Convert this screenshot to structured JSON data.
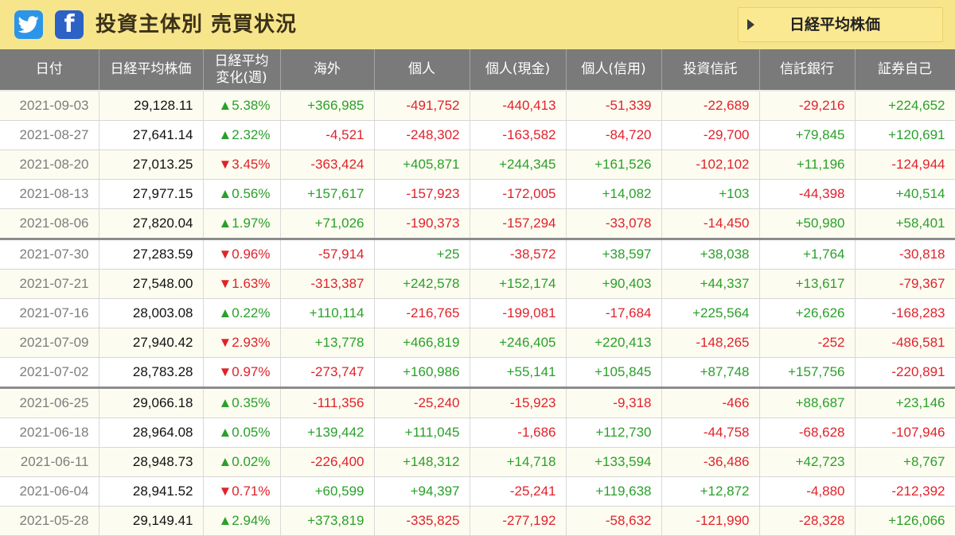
{
  "header": {
    "title": "投資主体別 売買状況",
    "nikkei_button_label": "日経平均株価"
  },
  "columns": [
    "日付",
    "日経平均株価",
    "日経平均\n変化(週)",
    "海外",
    "個人",
    "個人(現金)",
    "個人(信用)",
    "投資信託",
    "信託銀行",
    "証券自己"
  ],
  "colors": {
    "positive": "#2aa02a",
    "negative": "#e1222a",
    "header_bg": "#7a7a7a",
    "topbar_bg": "#f7e58c"
  },
  "rows": [
    {
      "date": "2021-09-03",
      "price": "29,128.11",
      "change": "▲5.38%",
      "values": [
        "+366,985",
        "-491,752",
        "-440,413",
        "-51,339",
        "-22,689",
        "-29,216",
        "+224,652"
      ]
    },
    {
      "date": "2021-08-27",
      "price": "27,641.14",
      "change": "▲2.32%",
      "values": [
        "-4,521",
        "-248,302",
        "-163,582",
        "-84,720",
        "-29,700",
        "+79,845",
        "+120,691"
      ]
    },
    {
      "date": "2021-08-20",
      "price": "27,013.25",
      "change": "▼3.45%",
      "values": [
        "-363,424",
        "+405,871",
        "+244,345",
        "+161,526",
        "-102,102",
        "+11,196",
        "-124,944"
      ]
    },
    {
      "date": "2021-08-13",
      "price": "27,977.15",
      "change": "▲0.56%",
      "values": [
        "+157,617",
        "-157,923",
        "-172,005",
        "+14,082",
        "+103",
        "-44,398",
        "+40,514"
      ]
    },
    {
      "date": "2021-08-06",
      "price": "27,820.04",
      "change": "▲1.97%",
      "values": [
        "+71,026",
        "-190,373",
        "-157,294",
        "-33,078",
        "-14,450",
        "+50,980",
        "+58,401"
      ]
    },
    {
      "date": "2021-07-30",
      "price": "27,283.59",
      "change": "▼0.96%",
      "values": [
        "-57,914",
        "+25",
        "-38,572",
        "+38,597",
        "+38,038",
        "+1,764",
        "-30,818"
      ]
    },
    {
      "date": "2021-07-21",
      "price": "27,548.00",
      "change": "▼1.63%",
      "values": [
        "-313,387",
        "+242,578",
        "+152,174",
        "+90,403",
        "+44,337",
        "+13,617",
        "-79,367"
      ]
    },
    {
      "date": "2021-07-16",
      "price": "28,003.08",
      "change": "▲0.22%",
      "values": [
        "+110,114",
        "-216,765",
        "-199,081",
        "-17,684",
        "+225,564",
        "+26,626",
        "-168,283"
      ]
    },
    {
      "date": "2021-07-09",
      "price": "27,940.42",
      "change": "▼2.93%",
      "values": [
        "+13,778",
        "+466,819",
        "+246,405",
        "+220,413",
        "-148,265",
        "-252",
        "-486,581"
      ]
    },
    {
      "date": "2021-07-02",
      "price": "28,783.28",
      "change": "▼0.97%",
      "values": [
        "-273,747",
        "+160,986",
        "+55,141",
        "+105,845",
        "+87,748",
        "+157,756",
        "-220,891"
      ]
    },
    {
      "date": "2021-06-25",
      "price": "29,066.18",
      "change": "▲0.35%",
      "values": [
        "-111,356",
        "-25,240",
        "-15,923",
        "-9,318",
        "-466",
        "+88,687",
        "+23,146"
      ]
    },
    {
      "date": "2021-06-18",
      "price": "28,964.08",
      "change": "▲0.05%",
      "values": [
        "+139,442",
        "+111,045",
        "-1,686",
        "+112,730",
        "-44,758",
        "-68,628",
        "-107,946"
      ]
    },
    {
      "date": "2021-06-11",
      "price": "28,948.73",
      "change": "▲0.02%",
      "values": [
        "-226,400",
        "+148,312",
        "+14,718",
        "+133,594",
        "-36,486",
        "+42,723",
        "+8,767"
      ]
    },
    {
      "date": "2021-06-04",
      "price": "28,941.52",
      "change": "▼0.71%",
      "values": [
        "+60,599",
        "+94,397",
        "-25,241",
        "+119,638",
        "+12,872",
        "-4,880",
        "-212,392"
      ]
    },
    {
      "date": "2021-05-28",
      "price": "29,149.41",
      "change": "▲2.94%",
      "values": [
        "+373,819",
        "-335,825",
        "-277,192",
        "-58,632",
        "-121,990",
        "-28,328",
        "+126,066"
      ]
    }
  ]
}
